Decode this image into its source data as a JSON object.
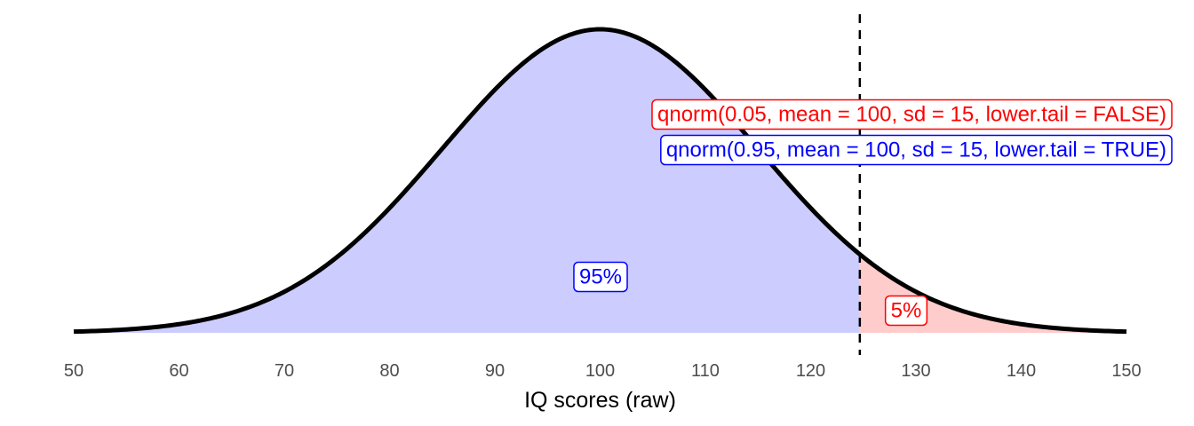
{
  "chart_data": {
    "type": "area",
    "distribution": "normal",
    "mean": 100,
    "sd": 15,
    "xlim": [
      50,
      150
    ],
    "xticks": [
      50,
      60,
      70,
      80,
      90,
      100,
      110,
      120,
      130,
      140,
      150
    ],
    "xlabel": "IQ scores (raw)",
    "ylabel": "",
    "threshold": 124.67,
    "grid": false,
    "regions": [
      {
        "label": "95%",
        "from": 50,
        "to": 124.67,
        "color": "#ccccff",
        "label_color": "#0000ff"
      },
      {
        "label": "5%",
        "from": 124.67,
        "to": 150,
        "color": "#ffcccc",
        "label_color": "#ff0000"
      }
    ],
    "annotations": [
      {
        "text": "qnorm(0.05, mean = 100, sd = 15, lower.tail = FALSE)",
        "color": "#ff0000"
      },
      {
        "text": "qnorm(0.95, mean = 100, sd = 15, lower.tail = TRUE)",
        "color": "#0000ff"
      }
    ]
  }
}
